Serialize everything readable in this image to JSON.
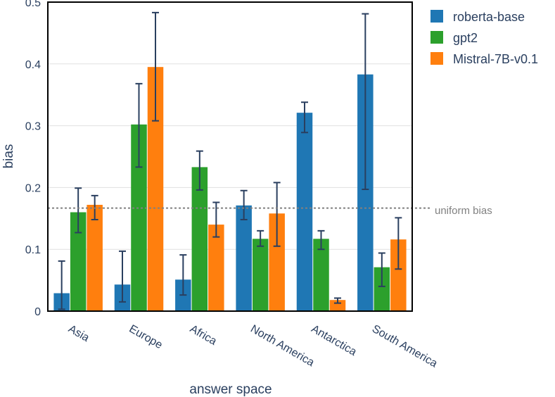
{
  "chart_data": {
    "type": "bar",
    "title": "",
    "xlabel": "answer space",
    "ylabel": "bias",
    "ylim": [
      0,
      0.5
    ],
    "yticks": [
      0,
      0.1,
      0.2,
      0.3,
      0.4,
      0.5
    ],
    "ytick_labels": [
      "0",
      "0.1",
      "0.2",
      "0.3",
      "0.4",
      "0.5"
    ],
    "grid": true,
    "legend_position": "top-right, outside plot",
    "categories": [
      "Asia",
      "Europe",
      "Africa",
      "North America",
      "Antarctica",
      "South America"
    ],
    "series": [
      {
        "name": "roberta-base",
        "color": "#1f77b4",
        "values": [
          0.029,
          0.043,
          0.051,
          0.171,
          0.321,
          0.383
        ],
        "err_low": [
          0.003,
          0.015,
          0.026,
          0.148,
          0.289,
          0.197
        ],
        "err_high": [
          0.081,
          0.097,
          0.091,
          0.195,
          0.338,
          0.481
        ]
      },
      {
        "name": "gpt2",
        "color": "#2ca02c",
        "values": [
          0.16,
          0.302,
          0.233,
          0.117,
          0.117,
          0.071
        ],
        "err_low": [
          0.127,
          0.233,
          0.196,
          0.105,
          0.1,
          0.04
        ],
        "err_high": [
          0.199,
          0.368,
          0.259,
          0.13,
          0.13,
          0.094
        ]
      },
      {
        "name": "Mistral-7B-v0.1",
        "color": "#ff7f0e",
        "values": [
          0.172,
          0.395,
          0.14,
          0.158,
          0.018,
          0.116
        ],
        "err_low": [
          0.148,
          0.308,
          0.12,
          0.105,
          0.013,
          0.068
        ],
        "err_high": [
          0.187,
          0.483,
          0.176,
          0.208,
          0.021,
          0.151
        ]
      }
    ],
    "reference_line": {
      "value": 0.1667,
      "label": "uniform bias",
      "style": "dotted",
      "color": "#808080"
    }
  }
}
